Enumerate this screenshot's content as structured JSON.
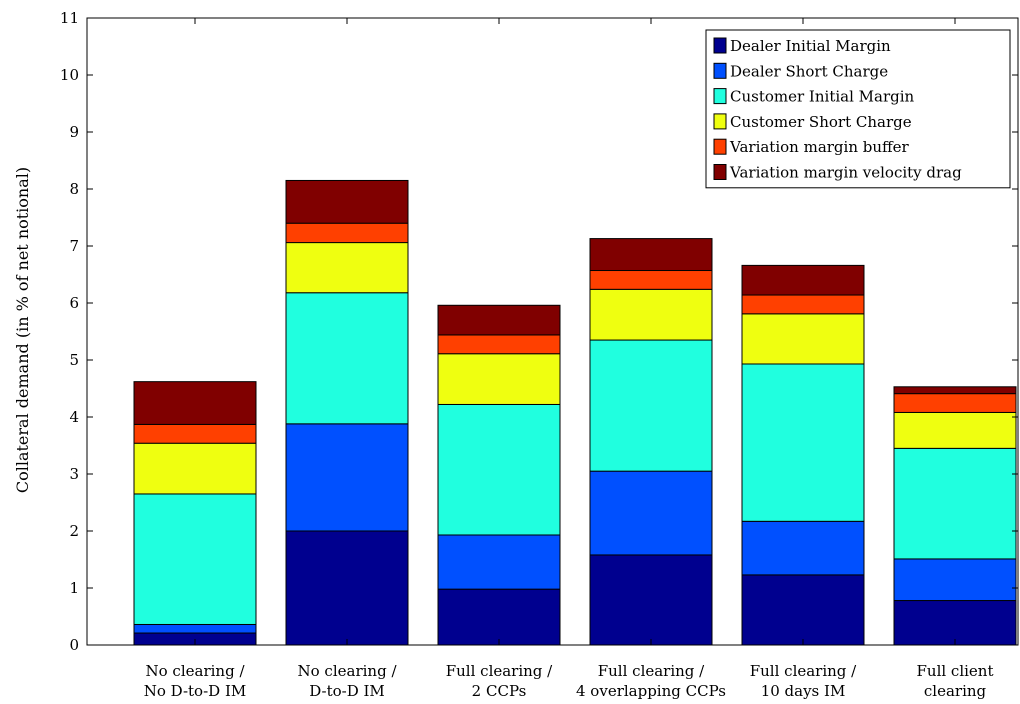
{
  "chart_data": {
    "type": "bar",
    "stacked": true,
    "ylabel": "Collateral demand (in % of net notional)",
    "xlabel": "",
    "ylim": [
      0,
      11
    ],
    "yticks": [
      0,
      1,
      2,
      3,
      4,
      5,
      6,
      7,
      8,
      9,
      10,
      11
    ],
    "grid": false,
    "legend_position": "top-right",
    "categories": [
      [
        "No clearing /",
        "No D-to-D IM"
      ],
      [
        "No clearing /",
        "D-to-D IM"
      ],
      [
        "Full clearing /",
        "2 CCPs"
      ],
      [
        "Full clearing /",
        "4 overlapping CCPs"
      ],
      [
        "Full clearing /",
        "10 days IM"
      ],
      [
        "Full client",
        "clearing"
      ]
    ],
    "series": [
      {
        "name": "Dealer Initial Margin",
        "color": "#00008f",
        "values": [
          0.21,
          2.0,
          0.98,
          1.58,
          1.23,
          0.78
        ]
      },
      {
        "name": "Dealer Short Charge",
        "color": "#0050ff",
        "values": [
          0.15,
          1.88,
          0.95,
          1.47,
          0.94,
          0.73
        ]
      },
      {
        "name": "Customer Initial Margin",
        "color": "#20ffdf",
        "values": [
          2.29,
          2.3,
          2.29,
          2.3,
          2.76,
          1.94
        ]
      },
      {
        "name": "Customer Short Charge",
        "color": "#efff10",
        "values": [
          0.89,
          0.88,
          0.89,
          0.89,
          0.88,
          0.63
        ]
      },
      {
        "name": "Variation margin buffer",
        "color": "#ff4000",
        "values": [
          0.33,
          0.34,
          0.33,
          0.33,
          0.33,
          0.33
        ]
      },
      {
        "name": "Variation margin velocity drag",
        "color": "#800000",
        "values": [
          0.75,
          0.75,
          0.52,
          0.56,
          0.52,
          0.12
        ]
      }
    ]
  }
}
